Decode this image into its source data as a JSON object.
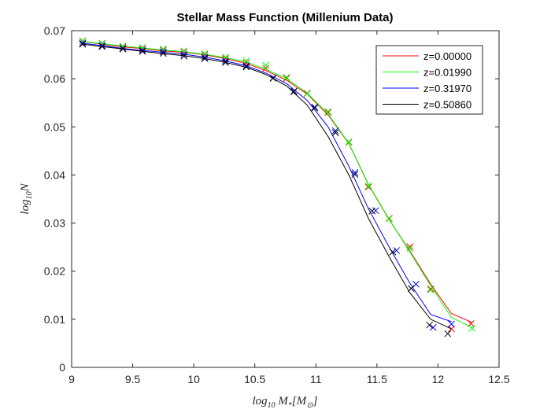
{
  "chart_data": {
    "type": "line",
    "title": "Stellar Mass Function (Millenium Data)",
    "xlabel": "log10 M*[M⊙]",
    "ylabel": "log10 N",
    "xlim": [
      9,
      12.5
    ],
    "ylim": [
      0,
      0.07
    ],
    "x_ticks": [
      "9",
      "9.5",
      "10",
      "10.5",
      "11",
      "11.5",
      "12",
      "12.5"
    ],
    "y_ticks": [
      "0",
      "0.01",
      "0.02",
      "0.03",
      "0.04",
      "0.05",
      "0.06",
      "0.07"
    ],
    "grid": false,
    "legend_position": "top-right",
    "series": [
      {
        "name": "z=0.00000",
        "color": "#ff0000",
        "line": {
          "x": [
            9.09,
            9.25,
            9.42,
            9.58,
            9.75,
            9.92,
            10.09,
            10.26,
            10.43,
            10.59,
            10.76,
            10.93,
            11.1,
            11.27,
            11.43,
            11.6,
            11.77,
            11.94,
            12.11,
            12.28
          ],
          "y": [
            0.0678,
            0.0672,
            0.0666,
            0.0663,
            0.0658,
            0.0655,
            0.065,
            0.0642,
            0.0632,
            0.0617,
            0.0597,
            0.0568,
            0.0525,
            0.0465,
            0.038,
            0.0307,
            0.0242,
            0.0173,
            0.0112,
            0.0093
          ]
        },
        "markers": {
          "x": [
            9.09,
            9.25,
            9.42,
            9.58,
            9.75,
            9.92,
            10.09,
            10.26,
            10.43,
            10.59,
            10.76,
            10.93,
            11.1,
            11.27,
            11.43,
            11.6,
            11.77,
            11.94,
            12.11,
            12.27
          ],
          "y": [
            0.0678,
            0.0673,
            0.0666,
            0.0662,
            0.066,
            0.0656,
            0.065,
            0.0642,
            0.0633,
            0.0622,
            0.0601,
            0.057,
            0.053,
            0.0468,
            0.0375,
            0.031,
            0.0251,
            0.0163,
            0.008,
            0.0091
          ]
        }
      },
      {
        "name": "z=0.01990",
        "color": "#00ff00",
        "line": {
          "x": [
            9.09,
            9.25,
            9.42,
            9.58,
            9.75,
            9.92,
            10.09,
            10.26,
            10.43,
            10.59,
            10.76,
            10.93,
            11.1,
            11.27,
            11.43,
            11.6,
            11.77,
            11.94,
            12.11,
            12.28
          ],
          "y": [
            0.0678,
            0.0673,
            0.0668,
            0.0664,
            0.066,
            0.0656,
            0.0651,
            0.0644,
            0.0635,
            0.062,
            0.06,
            0.057,
            0.0527,
            0.0466,
            0.0381,
            0.0308,
            0.024,
            0.017,
            0.0104,
            0.0083
          ]
        },
        "markers": {
          "x": [
            9.09,
            9.25,
            9.42,
            9.58,
            9.75,
            9.92,
            10.09,
            10.26,
            10.43,
            10.59,
            10.76,
            10.93,
            11.1,
            11.27,
            11.43,
            11.6,
            11.77,
            11.94,
            12.28
          ],
          "y": [
            0.0679,
            0.0674,
            0.0668,
            0.0665,
            0.0662,
            0.0658,
            0.0652,
            0.0645,
            0.0637,
            0.0628,
            0.0603,
            0.0569,
            0.0532,
            0.0469,
            0.0377,
            0.0309,
            0.0247,
            0.0161,
            0.0081
          ]
        }
      },
      {
        "name": "z=0.31970",
        "color": "#0000ff",
        "line": {
          "x": [
            9.09,
            9.25,
            9.42,
            9.58,
            9.75,
            9.92,
            10.09,
            10.26,
            10.43,
            10.59,
            10.76,
            10.93,
            11.1,
            11.27,
            11.43,
            11.6,
            11.77,
            11.94,
            12.11
          ],
          "y": [
            0.0674,
            0.0669,
            0.0663,
            0.0659,
            0.0655,
            0.0651,
            0.0645,
            0.0637,
            0.0627,
            0.0612,
            0.059,
            0.0555,
            0.05,
            0.0418,
            0.033,
            0.025,
            0.0175,
            0.011,
            0.0095
          ]
        },
        "markers": {
          "x": [
            9.09,
            9.25,
            9.42,
            9.58,
            9.75,
            9.92,
            10.09,
            10.26,
            10.43,
            10.65,
            10.82,
            10.99,
            11.16,
            11.32,
            11.49,
            11.66,
            11.82,
            11.96,
            12.11
          ],
          "y": [
            0.0674,
            0.0669,
            0.0663,
            0.0659,
            0.0656,
            0.0651,
            0.0645,
            0.0637,
            0.0627,
            0.0602,
            0.0573,
            0.0541,
            0.0492,
            0.0405,
            0.0326,
            0.0243,
            0.0173,
            0.0083,
            0.009
          ]
        }
      },
      {
        "name": "z=0.50860",
        "color": "#000000",
        "line": {
          "x": [
            9.09,
            9.25,
            9.42,
            9.58,
            9.75,
            9.92,
            10.09,
            10.26,
            10.43,
            10.59,
            10.76,
            10.93,
            11.1,
            11.27,
            11.43,
            11.6,
            11.77,
            11.94,
            12.11
          ],
          "y": [
            0.0672,
            0.0667,
            0.0662,
            0.0657,
            0.0652,
            0.0648,
            0.0642,
            0.0634,
            0.0624,
            0.0609,
            0.0585,
            0.0545,
            0.048,
            0.04,
            0.031,
            0.023,
            0.0155,
            0.01,
            0.008
          ]
        },
        "markers": {
          "x": [
            9.09,
            9.25,
            9.42,
            9.58,
            9.75,
            9.92,
            10.09,
            10.26,
            10.43,
            10.65,
            10.82,
            10.99,
            11.16,
            11.32,
            11.46,
            11.63,
            11.78,
            11.93,
            12.08
          ],
          "y": [
            0.0672,
            0.0667,
            0.0662,
            0.0657,
            0.0653,
            0.0647,
            0.0642,
            0.0634,
            0.0625,
            0.0601,
            0.0574,
            0.0539,
            0.0488,
            0.0401,
            0.0325,
            0.024,
            0.0164,
            0.0088,
            0.007
          ]
        }
      }
    ]
  }
}
